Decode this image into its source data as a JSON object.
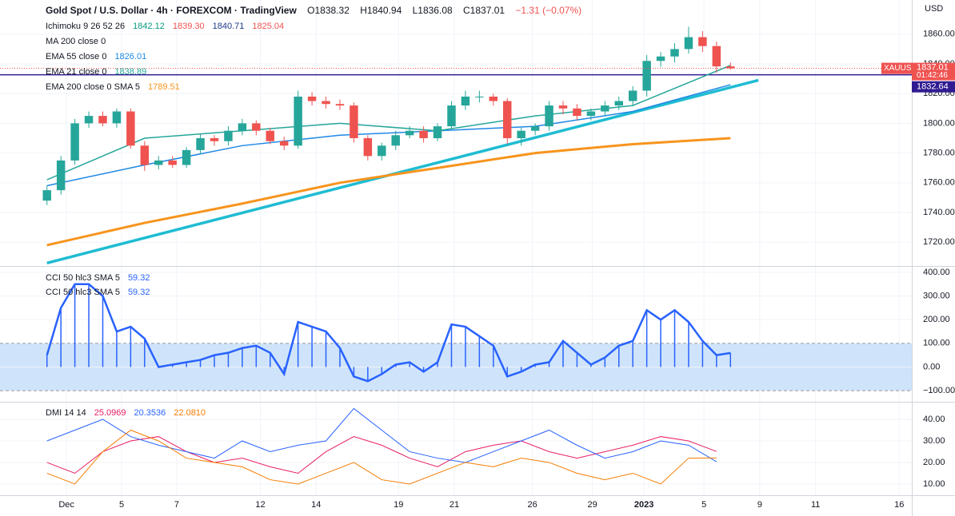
{
  "chart_data": [
    {
      "type": "candlestick",
      "title": "Gold Spot / U.S. Dollar · 4h · FOREXCOM · TradingView",
      "ohlc_labels": [
        "O1838.32",
        "H1840.94",
        "L1836.08",
        "C1837.01",
        "−1.31 (−0.07%)"
      ],
      "currency": "USD",
      "legend_extra": [
        {
          "name": "Ichimoku 9 26 52 26",
          "value_labels": [
            "1842.12",
            "1839.30",
            "1840.71",
            "1825.04"
          ]
        },
        {
          "name": "MA 200 close 0"
        }
      ],
      "symbol": "XAUUSD",
      "last_price_label": "1837.01",
      "countdown": "01:42:46",
      "level": {
        "value": 1832.64,
        "label": "1832.64",
        "color": "#311b92"
      },
      "xlim": [
        -0.5,
        62
      ],
      "ylim": [
        1704,
        1883
      ],
      "yticks": [
        {
          "value": 1720,
          "label": "1720.00"
        },
        {
          "value": 1740,
          "label": "1740.00"
        },
        {
          "value": 1760,
          "label": "1760.00"
        },
        {
          "value": 1780,
          "label": "1780.00"
        },
        {
          "value": 1800,
          "label": "1800.00"
        },
        {
          "value": 1820,
          "label": "1820.00"
        },
        {
          "value": 1840,
          "label": "1840.00"
        },
        {
          "value": 1860,
          "label": "1860.00"
        }
      ],
      "up_color": "#26a69a",
      "down_color": "#ef5350",
      "open": [
        1748,
        1755,
        1775,
        1800,
        1805,
        1800,
        1808,
        1785,
        1772,
        1775,
        1772,
        1782,
        1790,
        1788,
        1795,
        1800,
        1795,
        1788,
        1785,
        1818,
        1815,
        1813,
        1812,
        1790,
        1778,
        1785,
        1792,
        1795,
        1790,
        1798,
        1812,
        1818,
        1818,
        1815,
        1790,
        1795,
        1798,
        1812,
        1810,
        1805,
        1808,
        1812,
        1815,
        1822,
        1842,
        1845,
        1850,
        1858,
        1852,
        1838.32
      ],
      "high": [
        1758,
        1778,
        1803,
        1808,
        1808,
        1810,
        1810,
        1788,
        1778,
        1778,
        1784,
        1793,
        1792,
        1798,
        1803,
        1802,
        1797,
        1791,
        1822,
        1821,
        1818,
        1816,
        1814,
        1792,
        1787,
        1795,
        1798,
        1798,
        1800,
        1815,
        1822,
        1822,
        1820,
        1817,
        1797,
        1800,
        1815,
        1815,
        1813,
        1810,
        1815,
        1818,
        1825,
        1846,
        1848,
        1854,
        1865,
        1862,
        1855,
        1840.94
      ],
      "low": [
        1745,
        1752,
        1772,
        1797,
        1798,
        1797,
        1783,
        1768,
        1769,
        1770,
        1770,
        1779,
        1785,
        1785,
        1792,
        1792,
        1786,
        1782,
        1783,
        1812,
        1810,
        1809,
        1787,
        1775,
        1775,
        1782,
        1790,
        1787,
        1788,
        1796,
        1809,
        1814,
        1812,
        1786,
        1785,
        1792,
        1795,
        1806,
        1802,
        1802,
        1805,
        1809,
        1812,
        1818,
        1838,
        1841,
        1847,
        1848,
        1834,
        1836.08
      ],
      "close": [
        1755,
        1775,
        1800,
        1805,
        1800,
        1808,
        1785,
        1772,
        1775,
        1772,
        1782,
        1790,
        1788,
        1795,
        1800,
        1795,
        1788,
        1785,
        1818,
        1815,
        1813,
        1812,
        1790,
        1778,
        1785,
        1792,
        1795,
        1790,
        1798,
        1812,
        1818,
        1818,
        1815,
        1790,
        1795,
        1798,
        1812,
        1810,
        1805,
        1808,
        1812,
        1815,
        1822,
        1842,
        1845,
        1850,
        1858,
        1852,
        1838.32,
        1837.01
      ],
      "series": [
        {
          "name": "EMA 55 close 0",
          "value_label": "1826.01",
          "color": "#1e88e5",
          "width": 1.5,
          "x": [
            0,
            7,
            14,
            21,
            28,
            35,
            42,
            49
          ],
          "values": [
            1758,
            1772,
            1785,
            1792,
            1795,
            1798,
            1808,
            1826
          ]
        },
        {
          "name": "EMA 21 close 0",
          "value_label": "1838.89",
          "color": "#26a69a",
          "width": 1.5,
          "x": [
            0,
            7,
            14,
            21,
            28,
            35,
            42,
            49
          ],
          "values": [
            1762,
            1790,
            1795,
            1800,
            1795,
            1805,
            1812,
            1839
          ]
        },
        {
          "name": "EMA 200 close 0 SMA 5",
          "value_label": "1789.51",
          "color": "#f7941d",
          "width": 3,
          "x": [
            0,
            7,
            14,
            21,
            28,
            35,
            42,
            49
          ],
          "values": [
            1718,
            1733,
            1746,
            1760,
            1770,
            1780,
            1786,
            1790
          ]
        }
      ],
      "trendline": {
        "color": "#1fbcd2",
        "x": [
          0,
          51
        ],
        "values": [
          1706,
          1829
        ]
      }
    },
    {
      "type": "histogram-line",
      "legend": [
        {
          "name": "CCI 50 hlc3 SMA 5",
          "value_label": "59.32"
        },
        {
          "name": "CCI 50 hlc3 SMA 5",
          "value_label": "59.32"
        }
      ],
      "color": "#2962ff",
      "band": [
        -100,
        100
      ],
      "band_color": "#cfe4fa",
      "xlim": [
        -0.5,
        62
      ],
      "ylim": [
        -147,
        420
      ],
      "yticks": [
        {
          "value": -100,
          "label": "−100.00"
        },
        {
          "value": 0,
          "label": "0.00"
        },
        {
          "value": 100,
          "label": "100.00"
        },
        {
          "value": 200,
          "label": "200.00"
        },
        {
          "value": 300,
          "label": "300.00"
        },
        {
          "value": 400,
          "label": "400.00"
        }
      ],
      "values": [
        50,
        250,
        350,
        350,
        300,
        150,
        170,
        120,
        0,
        10,
        20,
        30,
        50,
        60,
        80,
        90,
        60,
        -30,
        190,
        170,
        150,
        80,
        -40,
        -60,
        -30,
        10,
        20,
        -20,
        20,
        180,
        170,
        130,
        90,
        -40,
        -20,
        10,
        20,
        110,
        60,
        10,
        40,
        90,
        110,
        240,
        200,
        240,
        190,
        110,
        50,
        59.32
      ]
    },
    {
      "type": "line",
      "title": "DMI 14 14",
      "xlim": [
        -0.5,
        62
      ],
      "ylim": [
        4.8,
        47.4
      ],
      "yticks": [
        {
          "value": 10,
          "label": "10.00"
        },
        {
          "value": 20,
          "label": "20.00"
        },
        {
          "value": 30,
          "label": "30.00"
        },
        {
          "value": 40,
          "label": "40.00"
        }
      ],
      "xticks": [
        {
          "value": 1.4,
          "label": "Dec"
        },
        {
          "value": 5.35,
          "label": "5"
        },
        {
          "value": 9.3,
          "label": "7"
        },
        {
          "value": 15.3,
          "label": "12"
        },
        {
          "value": 19.3,
          "label": "14"
        },
        {
          "value": 25.2,
          "label": "19"
        },
        {
          "value": 29.2,
          "label": "21"
        },
        {
          "value": 34.8,
          "label": "26"
        },
        {
          "value": 39.1,
          "label": "29"
        },
        {
          "value": 42.8,
          "label": "2023"
        },
        {
          "value": 47.1,
          "label": "5"
        },
        {
          "value": 51.1,
          "label": "9"
        },
        {
          "value": 55.1,
          "label": "11"
        },
        {
          "value": 61.1,
          "label": "16"
        }
      ],
      "series": [
        {
          "name": "25.0969",
          "color": "#e91e63",
          "x": [
            0,
            2,
            4,
            6,
            8,
            10,
            12,
            14,
            16,
            18,
            20,
            22,
            24,
            26,
            28,
            30,
            32,
            34,
            36,
            38,
            40,
            42,
            44,
            46,
            48
          ],
          "values": [
            20,
            15,
            25,
            30,
            32,
            25,
            20,
            22,
            18,
            15,
            25,
            32,
            28,
            22,
            18,
            25,
            28,
            30,
            25,
            22,
            25,
            28,
            32,
            30,
            25.0969
          ]
        },
        {
          "name": "20.3536",
          "color": "#2962ff",
          "x": [
            0,
            2,
            4,
            6,
            8,
            10,
            12,
            14,
            16,
            18,
            20,
            22,
            24,
            26,
            28,
            30,
            32,
            34,
            36,
            38,
            40,
            42,
            44,
            46,
            48
          ],
          "values": [
            30,
            35,
            40,
            32,
            28,
            25,
            22,
            30,
            25,
            28,
            30,
            45,
            35,
            25,
            22,
            20,
            25,
            30,
            35,
            28,
            22,
            25,
            30,
            28,
            20.3536
          ]
        },
        {
          "name": "22.0810",
          "color": "#f57c00",
          "x": [
            0,
            2,
            4,
            6,
            8,
            10,
            12,
            14,
            16,
            18,
            20,
            22,
            24,
            26,
            28,
            30,
            32,
            34,
            36,
            38,
            40,
            42,
            44,
            46,
            48
          ],
          "values": [
            15,
            10,
            25,
            35,
            30,
            22,
            20,
            18,
            12,
            10,
            15,
            20,
            12,
            10,
            15,
            20,
            18,
            22,
            20,
            15,
            12,
            15,
            10,
            22,
            22.081
          ]
        }
      ]
    }
  ]
}
